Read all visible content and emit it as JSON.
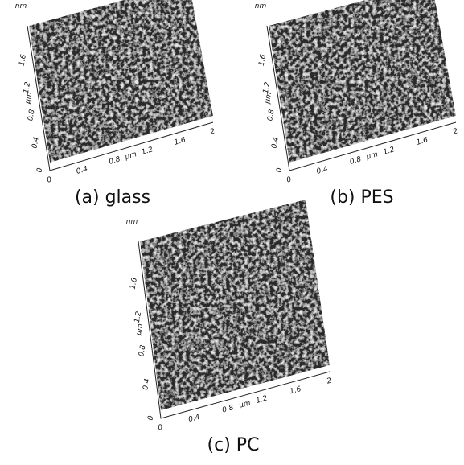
{
  "panels": [
    {
      "caption": "(a) glass",
      "x_ticks": [
        "0",
        "0.4",
        "0.8",
        "1.2",
        "1.6",
        "2"
      ],
      "x_unit": "μm",
      "y_ticks": [
        "0",
        "0.4",
        "0.8",
        "1.2",
        "1.6"
      ],
      "y_unit": "μm",
      "z_unit": "nm"
    },
    {
      "caption": "(b) PES",
      "x_ticks": [
        "0",
        "0.4",
        "0.8",
        "1.2",
        "1.6",
        "2"
      ],
      "x_unit": "μm",
      "y_ticks": [
        "0",
        "0.4",
        "0.8",
        "1.2",
        "1.6"
      ],
      "y_unit": "μm",
      "z_unit": "nm"
    },
    {
      "caption": "(c) PC",
      "x_ticks": [
        "0",
        "0.4",
        "0.8",
        "1.2",
        "1.6",
        "2"
      ],
      "x_unit": "μm",
      "y_ticks": [
        "0",
        "0.4",
        "0.8",
        "1.2",
        "1.6"
      ],
      "y_unit": "μm",
      "z_unit": "nm"
    }
  ]
}
